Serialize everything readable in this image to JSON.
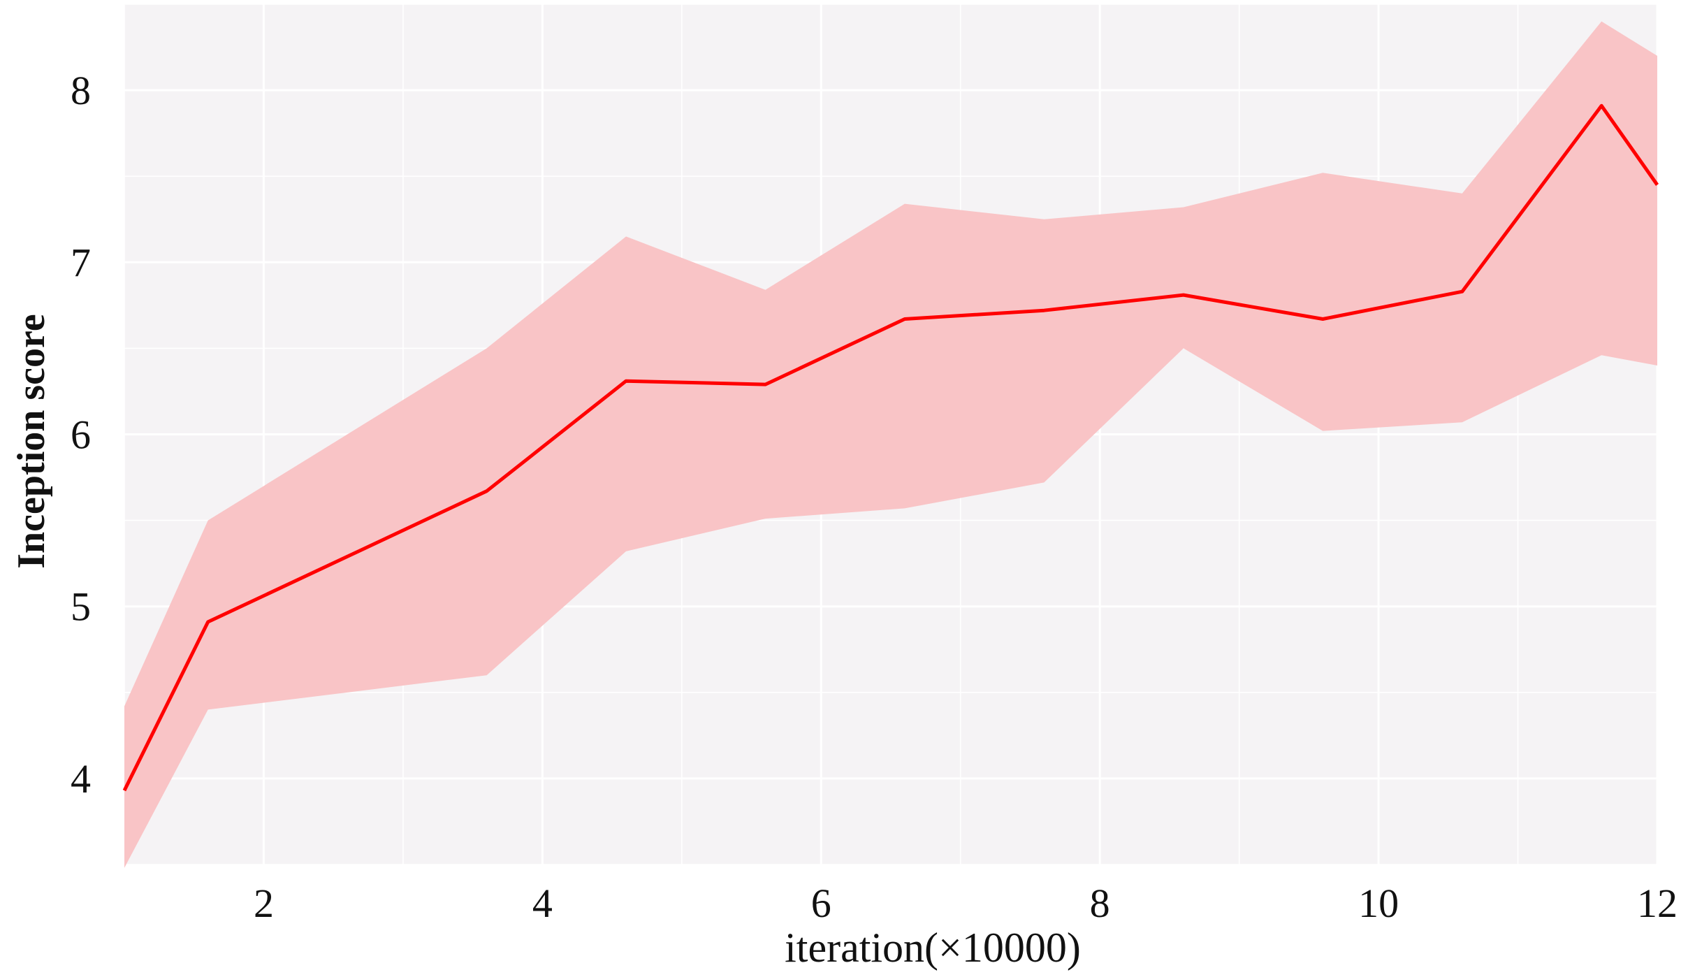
{
  "chart_data": {
    "type": "line",
    "title": "",
    "xlabel": "iteration(×10000)",
    "ylabel": "Inception score",
    "xlim": [
      1,
      12
    ],
    "ylim": [
      3.5,
      8.5
    ],
    "x_ticks": [
      2,
      4,
      6,
      8,
      10,
      12
    ],
    "x_tick_labels": [
      "2",
      "4",
      "6",
      "8",
      "10",
      "12"
    ],
    "y_ticks": [
      4,
      5,
      6,
      7,
      8
    ],
    "y_tick_labels": [
      "4",
      "5",
      "6",
      "7",
      "8"
    ],
    "grid": true,
    "colors": {
      "plot_background": "#f5f3f5",
      "grid": "#ffffff",
      "line": "#ff0000",
      "band": "#f9c4c6"
    },
    "series": [
      {
        "x": [
          1.0,
          1.6,
          3.6,
          4.6,
          5.6,
          6.6,
          7.6,
          8.6,
          9.6,
          10.6,
          11.6,
          12.0
        ],
        "y": [
          3.93,
          4.91,
          5.67,
          6.31,
          6.29,
          6.67,
          6.72,
          6.81,
          6.67,
          6.83,
          7.91,
          7.45
        ],
        "upper": [
          4.42,
          5.5,
          6.5,
          7.15,
          6.84,
          7.34,
          7.25,
          7.32,
          7.52,
          7.4,
          8.4,
          8.2
        ],
        "lower": [
          3.48,
          4.4,
          4.6,
          5.32,
          5.51,
          5.57,
          5.72,
          6.5,
          6.02,
          6.07,
          6.46,
          6.4
        ]
      }
    ]
  }
}
